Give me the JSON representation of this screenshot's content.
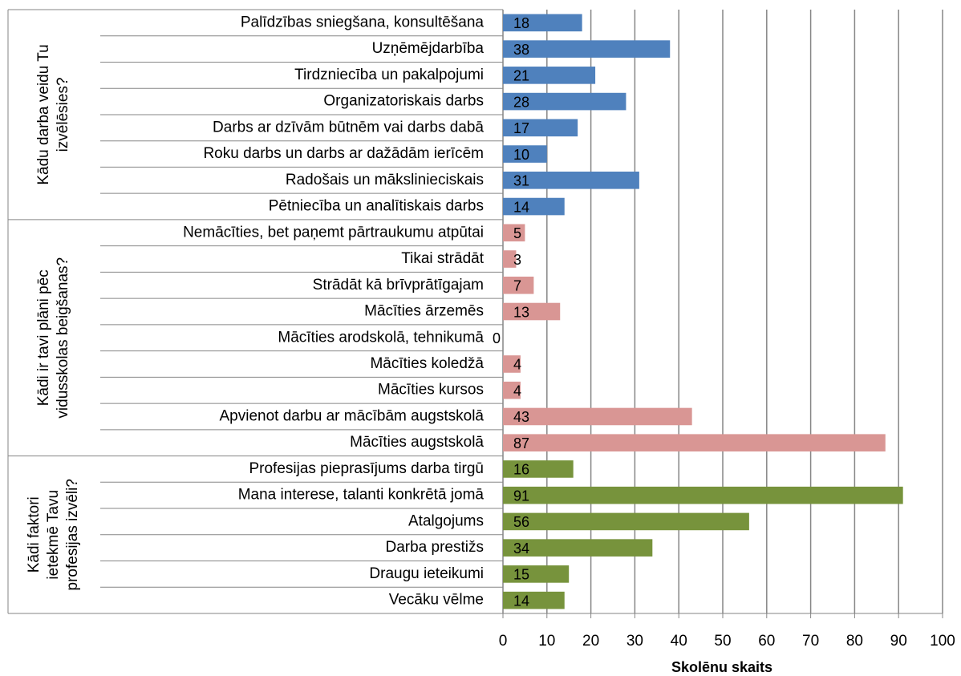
{
  "chart_data": {
    "type": "bar",
    "orientation": "horizontal",
    "groups": [
      {
        "label": [
          "Kādu darba veidu Tu",
          "izvēlēsies?"
        ],
        "color": "#4f81bd",
        "categories": [
          "Palīdzības sniegšana, konsultēšana",
          "Uzņēmējdarbība",
          "Tirdzniecība un pakalpojumi",
          "Organizatoriskais darbs",
          "Darbs ar dzīvām būtnēm vai darbs dabā",
          "Roku darbs un darbs ar dažādām ierīcēm",
          "Radošais un mākslinieciskais",
          "Pētniecība un analītiskais darbs"
        ],
        "values": [
          18,
          38,
          21,
          28,
          17,
          10,
          31,
          14
        ]
      },
      {
        "label": [
          "Kādi ir tavi plāni pēc",
          "vidusskolas beigšanas?"
        ],
        "color": "#d99694",
        "categories": [
          "Nemācīties, bet paņemt pārtraukumu atpūtai",
          "Tikai strādāt",
          "Strādāt kā brīvprātīgajam",
          "Mācīties ārzemēs",
          "Mācīties arodskolā, tehnikumā",
          "Mācīties koledžā",
          "Mācīties kursos",
          "Apvienot darbu ar mācībām augstskolā",
          "Mācīties augstskolā"
        ],
        "values": [
          5,
          3,
          7,
          13,
          0,
          4,
          4,
          43,
          87
        ]
      },
      {
        "label": [
          "Kādi faktori",
          "ietekmē Tavu",
          "profesijas izvēli?"
        ],
        "color": "#77933c",
        "categories": [
          "Profesijas pieprasījums darba tirgū",
          "Mana interese, talanti konkrētā jomā",
          "Atalgojums",
          "Darba prestižs",
          "Draugu ieteikumi",
          "Vecāku vēlme"
        ],
        "values": [
          16,
          91,
          56,
          34,
          15,
          14
        ]
      }
    ],
    "x_label": "Skolēnu skaits",
    "xlim": [
      0,
      100
    ],
    "xticks": [
      0,
      10,
      20,
      30,
      40,
      50,
      60,
      70,
      80,
      90,
      100
    ],
    "grid": true
  }
}
